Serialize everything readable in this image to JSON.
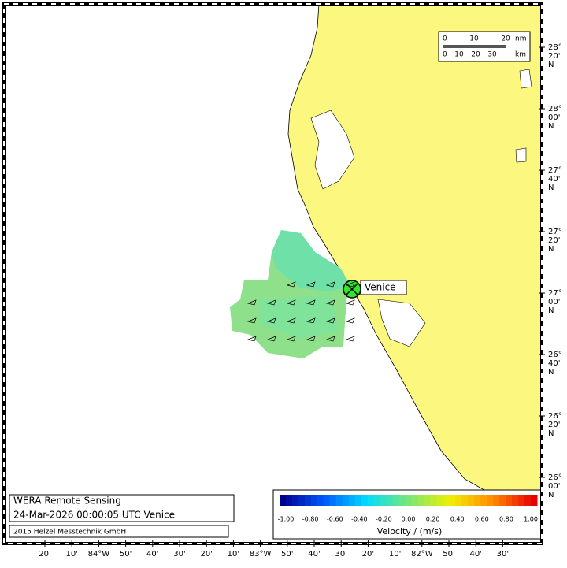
{
  "map": {
    "scale_bar": {
      "nm_labels": [
        "0",
        "10",
        "20"
      ],
      "nm_unit": "nm",
      "km_labels": [
        "0",
        "10",
        "20",
        "30"
      ],
      "km_unit": "km"
    },
    "station": "Venice",
    "info": {
      "title": "WERA Remote Sensing",
      "timestamp": "24-Mar-2026 00:00:05 UTC  Venice",
      "copyright": "2015 Helzel Messtechnik GmbH"
    },
    "colorbar": {
      "labels": [
        "-1.00",
        "-0.80",
        "-0.60",
        "-0.40",
        "-0.20",
        "0.00",
        "0.20",
        "0.40",
        "0.60",
        "0.80",
        "1.00"
      ],
      "title": "Velocity / (m/s)"
    },
    "lat_labels": [
      [
        "28°",
        "20'",
        "N"
      ],
      [
        "28°",
        "00'",
        "N"
      ],
      [
        "27°",
        "40'",
        "N"
      ],
      [
        "27°",
        "20'",
        "N"
      ],
      [
        "27°",
        "00'",
        "N"
      ],
      [
        "26°",
        "40'",
        "N"
      ],
      [
        "26°",
        "20'",
        "N"
      ],
      [
        "26°",
        "00'",
        "N"
      ]
    ],
    "lon_labels": [
      "20'",
      "10'",
      "84°W",
      "50'",
      "40'",
      "30'",
      "20'",
      "10'",
      "83°W",
      "50'",
      "40'",
      "30'",
      "20'",
      "10'",
      "82°W",
      "50'",
      "40'",
      "30'"
    ]
  }
}
